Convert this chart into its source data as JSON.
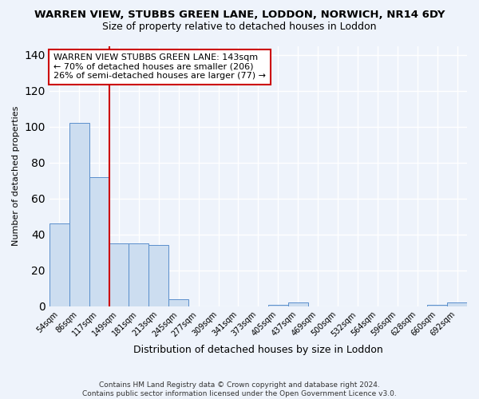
{
  "title": "WARREN VIEW, STUBBS GREEN LANE, LODDON, NORWICH, NR14 6DY",
  "subtitle": "Size of property relative to detached houses in Loddon",
  "xlabel": "Distribution of detached houses by size in Loddon",
  "ylabel": "Number of detached properties",
  "categories": [
    "54sqm",
    "86sqm",
    "117sqm",
    "149sqm",
    "181sqm",
    "213sqm",
    "245sqm",
    "277sqm",
    "309sqm",
    "341sqm",
    "373sqm",
    "405sqm",
    "437sqm",
    "469sqm",
    "500sqm",
    "532sqm",
    "564sqm",
    "596sqm",
    "628sqm",
    "660sqm",
    "692sqm"
  ],
  "values": [
    46,
    102,
    72,
    35,
    35,
    34,
    4,
    0,
    0,
    0,
    0,
    1,
    2,
    0,
    0,
    0,
    0,
    0,
    0,
    1,
    2
  ],
  "bar_color": "#ccddf0",
  "bar_edge_color": "#5a8fcc",
  "vline_color": "#cc0000",
  "vline_pos": 2.5,
  "annotation_text": "WARREN VIEW STUBBS GREEN LANE: 143sqm\n← 70% of detached houses are smaller (206)\n26% of semi-detached houses are larger (77) →",
  "annotation_box_color": "white",
  "annotation_box_edge": "#cc0000",
  "ylim": [
    0,
    145
  ],
  "yticks": [
    0,
    20,
    40,
    60,
    80,
    100,
    120,
    140
  ],
  "footer": "Contains HM Land Registry data © Crown copyright and database right 2024.\nContains public sector information licensed under the Open Government Licence v3.0.",
  "bg_color": "#eef3fb",
  "grid_color": "white",
  "title_fontsize": 9.5,
  "subtitle_fontsize": 9,
  "annot_fontsize": 8
}
